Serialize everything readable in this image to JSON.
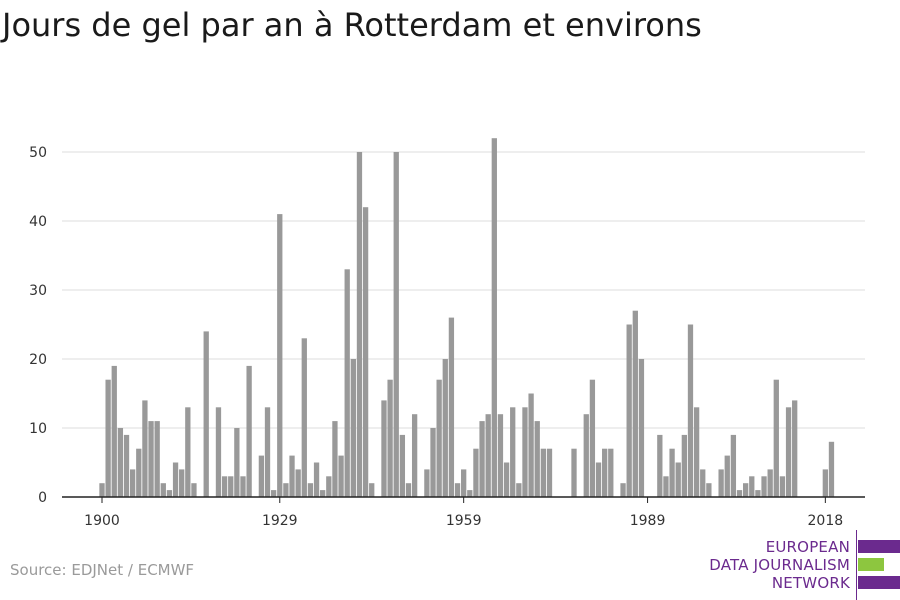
{
  "title": "Jours de gel par an à Rotterdam et environs",
  "source": "Source: EDJNet / ECMWF",
  "logo": {
    "lines": [
      "EUROPEAN",
      "DATA JOURNALISM",
      "NETWORK"
    ],
    "color_purple": "#6b2a8e",
    "color_green": "#8dc63f"
  },
  "chart_data": {
    "type": "bar",
    "title": "",
    "xlabel": "",
    "ylabel": "",
    "ylim": [
      0,
      55
    ],
    "y_ticks": [
      0,
      10,
      20,
      30,
      40,
      50
    ],
    "x_tick_labels": [
      "1900",
      "1929",
      "1959",
      "1989",
      "2018"
    ],
    "grid": true,
    "bar_color": "#999999",
    "years": [
      1900,
      1901,
      1902,
      1903,
      1904,
      1905,
      1906,
      1907,
      1908,
      1909,
      1910,
      1911,
      1912,
      1913,
      1914,
      1915,
      1916,
      1917,
      1918,
      1919,
      1920,
      1921,
      1922,
      1923,
      1924,
      1925,
      1926,
      1927,
      1928,
      1929,
      1930,
      1931,
      1932,
      1933,
      1934,
      1935,
      1936,
      1937,
      1938,
      1939,
      1940,
      1941,
      1942,
      1943,
      1944,
      1945,
      1946,
      1947,
      1948,
      1949,
      1950,
      1951,
      1952,
      1953,
      1954,
      1955,
      1956,
      1957,
      1958,
      1959,
      1960,
      1961,
      1962,
      1963,
      1964,
      1965,
      1966,
      1967,
      1968,
      1969,
      1970,
      1971,
      1972,
      1973,
      1974,
      1975,
      1976,
      1977,
      1978,
      1979,
      1980,
      1981,
      1982,
      1983,
      1984,
      1985,
      1986,
      1987,
      1988,
      1989,
      1990,
      1991,
      1992,
      1993,
      1994,
      1995,
      1996,
      1997,
      1998,
      1999,
      2000,
      2001,
      2002,
      2003,
      2004,
      2005,
      2006,
      2007,
      2008,
      2009,
      2010,
      2011,
      2012,
      2013,
      2014,
      2015,
      2016,
      2017,
      2018,
      2019
    ],
    "values": [
      2,
      17,
      19,
      10,
      9,
      4,
      7,
      14,
      11,
      11,
      2,
      1,
      5,
      4,
      13,
      2,
      0,
      24,
      0,
      13,
      3,
      3,
      10,
      3,
      19,
      0,
      6,
      13,
      1,
      41,
      2,
      6,
      4,
      23,
      2,
      5,
      1,
      3,
      11,
      6,
      33,
      20,
      50,
      42,
      2,
      0,
      14,
      17,
      50,
      9,
      2,
      12,
      0,
      4,
      10,
      17,
      20,
      26,
      2,
      4,
      1,
      7,
      11,
      12,
      52,
      12,
      5,
      13,
      2,
      13,
      15,
      11,
      7,
      7,
      0,
      0,
      0,
      7,
      0,
      12,
      17,
      5,
      7,
      7,
      0,
      2,
      25,
      27,
      20,
      0,
      0,
      9,
      3,
      7,
      5,
      9,
      25,
      13,
      4,
      2,
      0,
      4,
      6,
      9,
      1,
      2,
      3,
      1,
      3,
      4,
      17,
      3,
      13,
      14,
      0,
      0,
      0,
      0,
      4,
      8
    ]
  }
}
